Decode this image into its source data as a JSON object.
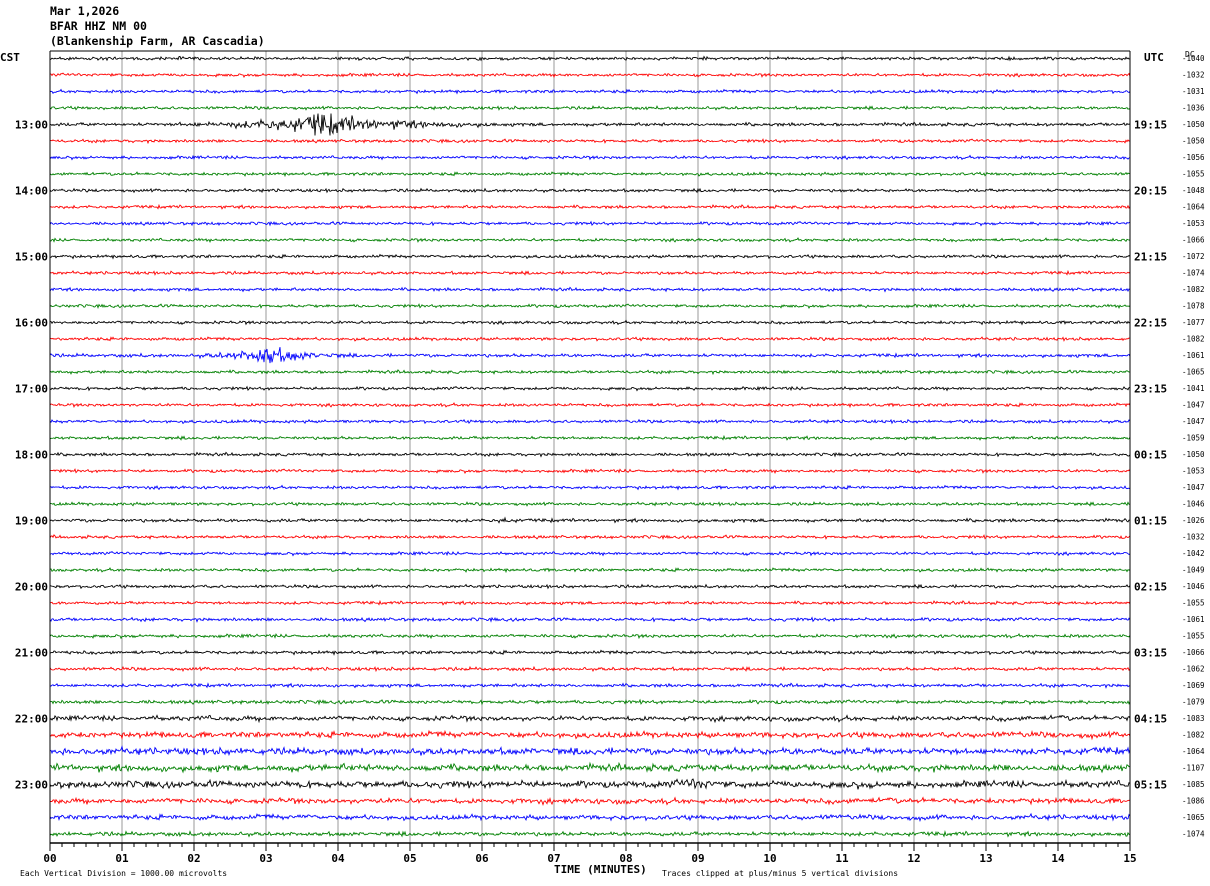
{
  "header": {
    "date": "Mar 1,2026",
    "station": "BFAR HHZ NM 00",
    "location": "(Blankenship Farm, AR Cascadia)"
  },
  "labels": {
    "left_tz": "CST",
    "right_tz": "UTC",
    "dc": "DC",
    "xlabel": "TIME (MINUTES)",
    "scale_note": "Each Vertical Division = 1000.00 microvolts",
    "clip_note": "Traces clipped at plus/minus 5 vertical divisions"
  },
  "chart_data": {
    "type": "line",
    "description_units": "helicorder: 15-minute traces, x = minutes",
    "xlim": [
      0,
      15
    ],
    "x_ticks": [
      "00",
      "01",
      "02",
      "03",
      "04",
      "05",
      "06",
      "07",
      "08",
      "09",
      "10",
      "11",
      "12",
      "13",
      "14",
      "15"
    ],
    "trace_colors": [
      "#000000",
      "#ff0000",
      "#0000ff",
      "#008000"
    ],
    "left_time_labels": [
      "13:00",
      "14:00",
      "15:00",
      "16:00",
      "17:00",
      "18:00",
      "19:00",
      "20:00",
      "21:00",
      "22:00",
      "23:00"
    ],
    "right_time_labels": [
      "19:15",
      "20:15",
      "21:15",
      "22:15",
      "23:15",
      "00:15",
      "01:15",
      "02:15",
      "03:15",
      "04:15",
      "05:15"
    ],
    "label_first_row": 4,
    "dc_offsets": [
      "-1040",
      "-1032",
      "-1031",
      "-1036",
      "-1050",
      "-1050",
      "-1056",
      "-1055",
      "-1048",
      "-1064",
      "-1053",
      "-1066",
      "-1072",
      "-1074",
      "-1082",
      "-1078",
      "-1077",
      "-1082",
      "-1061",
      "-1065",
      "-1041",
      "-1047",
      "-1047",
      "-1059",
      "-1050",
      "-1053",
      "-1047",
      "-1046",
      "-1026",
      "-1032",
      "-1042",
      "-1049",
      "-1046",
      "-1055",
      "-1061",
      "-1055",
      "-1066",
      "-1062",
      "-1069",
      "-1079",
      "-1083",
      "-1082",
      "-1064",
      "-1107",
      "-1085",
      "-1086",
      "-1065",
      "-1074"
    ],
    "noise_amplitude": [
      1.2,
      1.2,
      1.2,
      1.2,
      1.3,
      1.2,
      1.2,
      1.2,
      1.2,
      1.2,
      1.2,
      1.2,
      1.2,
      1.2,
      1.2,
      1.2,
      1.2,
      1.2,
      1.3,
      1.2,
      1.2,
      1.2,
      1.2,
      1.2,
      1.2,
      1.2,
      1.2,
      1.2,
      1.3,
      1.2,
      1.2,
      1.2,
      1.2,
      1.2,
      1.3,
      1.3,
      1.3,
      1.3,
      1.3,
      1.4,
      1.8,
      2.2,
      2.6,
      2.6,
      2.6,
      2.0,
      1.8,
      1.6
    ],
    "events": [
      {
        "row": 4,
        "start_min": 1.7,
        "peak_min": 3.65,
        "end_min": 6.2,
        "amplitude": 10
      },
      {
        "row": 18,
        "start_min": 2.0,
        "peak_min": 2.95,
        "end_min": 4.2,
        "amplitude": 9
      },
      {
        "row": 28,
        "start_min": 6.1,
        "peak_min": 6.3,
        "end_min": 6.5,
        "amplitude": 2
      },
      {
        "row": 44,
        "start_min": 8.6,
        "peak_min": 8.95,
        "end_min": 9.4,
        "amplitude": 4
      }
    ]
  }
}
